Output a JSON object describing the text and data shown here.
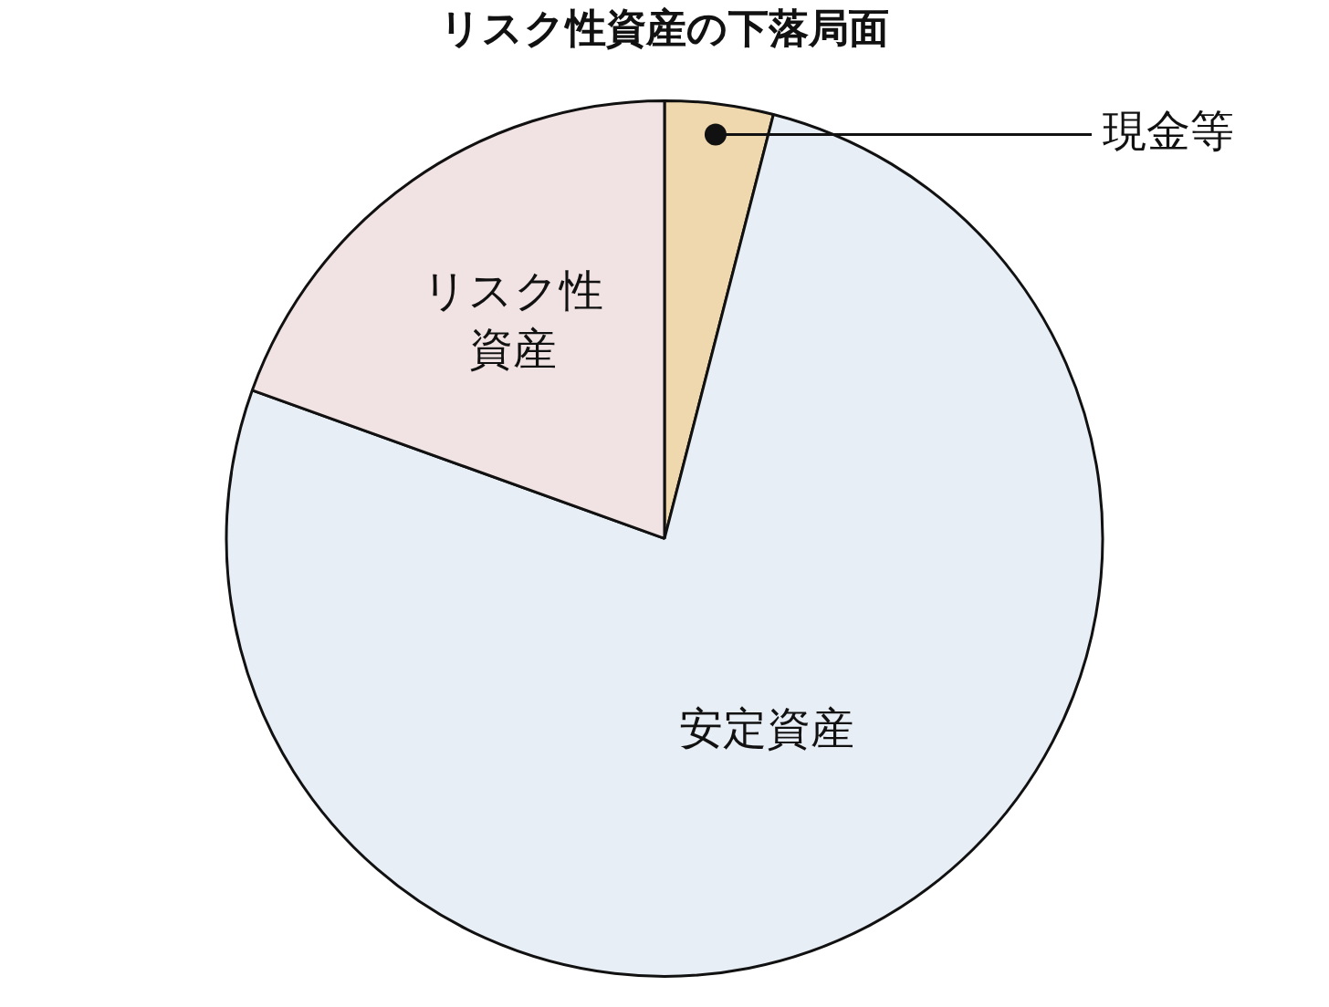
{
  "chart_data": {
    "type": "pie",
    "title": "リスク性資産の下落局面",
    "categories": [
      "現金等",
      "安定資産",
      "リスク性資産"
    ],
    "values": [
      4,
      76.5,
      19.5
    ],
    "colors": [
      "#f0d8ae",
      "#e8eef5",
      "#f1e3e3"
    ],
    "legend": false
  }
}
